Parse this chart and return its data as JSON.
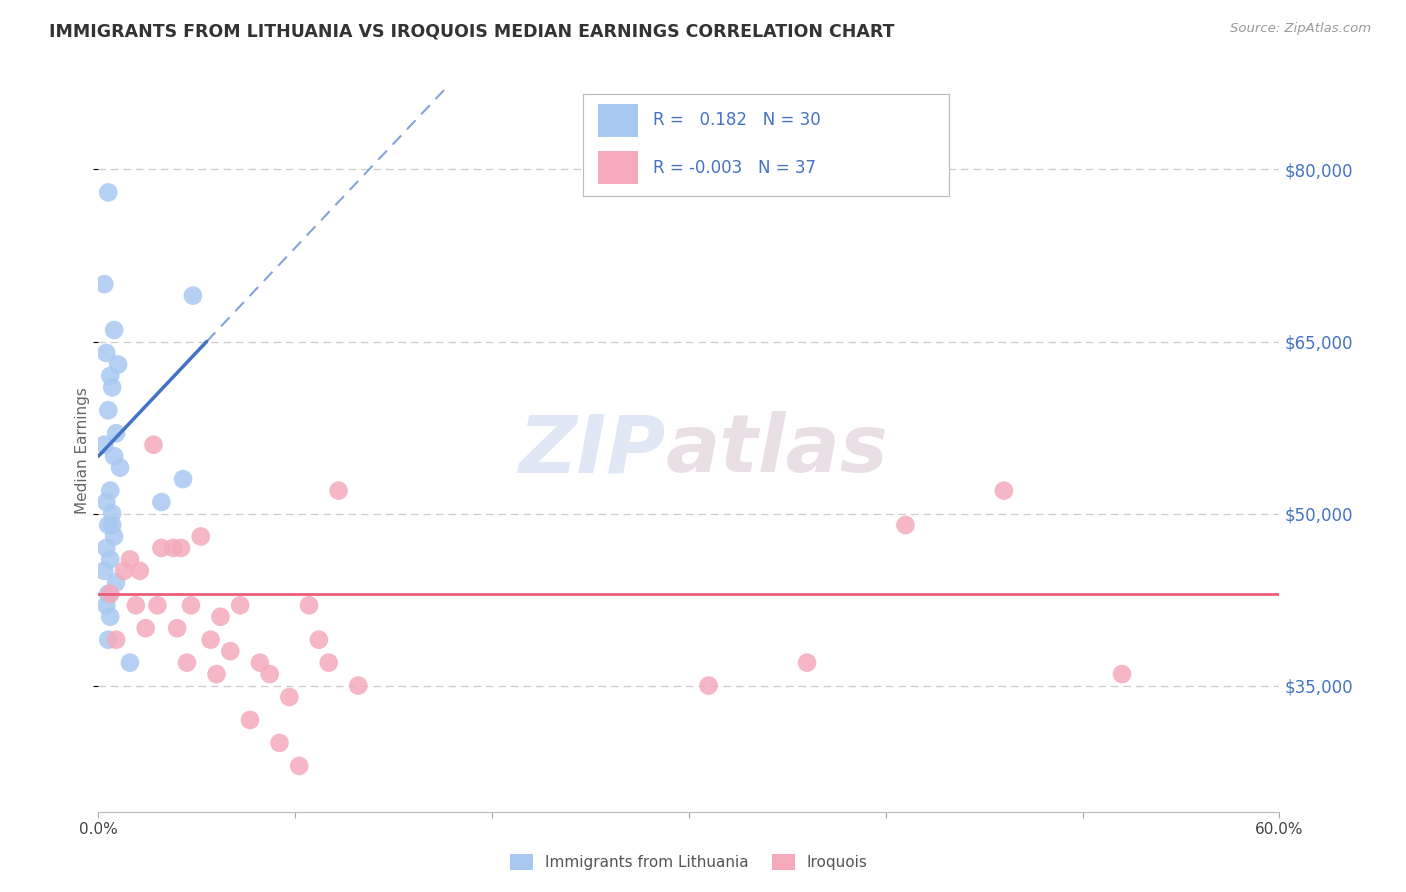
{
  "title": "IMMIGRANTS FROM LITHUANIA VS IROQUOIS MEDIAN EARNINGS CORRELATION CHART",
  "source": "Source: ZipAtlas.com",
  "ylabel": "Median Earnings",
  "xlim": [
    0.0,
    60.0
  ],
  "ylim": [
    24000,
    87000
  ],
  "y_ticks": [
    35000,
    50000,
    65000,
    80000
  ],
  "y_tick_labels": [
    "$35,000",
    "$50,000",
    "$65,000",
    "$80,000"
  ],
  "blue_R": 0.182,
  "blue_N": 30,
  "pink_R": -0.003,
  "pink_N": 37,
  "blue_color": "#a8c8f0",
  "pink_color": "#f4aabb",
  "blue_line_color": "#4472c4",
  "pink_line_color": "#e8607a",
  "grid_color": "#cccccc",
  "background_color": "#ffffff",
  "blue_scatter_x": [
    0.5,
    0.3,
    0.8,
    0.4,
    1.0,
    0.6,
    0.7,
    0.5,
    0.9,
    0.3,
    0.8,
    1.1,
    0.6,
    0.4,
    0.7,
    0.5,
    0.8,
    0.4,
    0.6,
    0.3,
    0.9,
    0.5,
    0.4,
    4.8,
    0.7,
    4.3,
    0.6,
    0.5,
    1.6,
    3.2
  ],
  "blue_scatter_y": [
    78000,
    70000,
    66000,
    64000,
    63000,
    62000,
    61000,
    59000,
    57000,
    56000,
    55000,
    54000,
    52000,
    51000,
    50000,
    49000,
    48000,
    47000,
    46000,
    45000,
    44000,
    43000,
    42000,
    69000,
    49000,
    53000,
    41000,
    39000,
    37000,
    51000
  ],
  "pink_scatter_x": [
    0.6,
    1.3,
    0.9,
    2.8,
    1.6,
    3.2,
    2.1,
    3.8,
    1.9,
    2.4,
    4.2,
    3.0,
    5.2,
    4.7,
    4.0,
    6.2,
    5.7,
    4.5,
    7.2,
    6.0,
    6.7,
    8.2,
    7.7,
    9.2,
    8.7,
    10.2,
    9.7,
    11.2,
    10.7,
    12.2,
    11.7,
    13.2,
    46.0,
    52.0,
    41.0,
    36.0,
    31.0
  ],
  "pink_scatter_y": [
    43000,
    45000,
    39000,
    56000,
    46000,
    47000,
    45000,
    47000,
    42000,
    40000,
    47000,
    42000,
    48000,
    42000,
    40000,
    41000,
    39000,
    37000,
    42000,
    36000,
    38000,
    37000,
    32000,
    30000,
    36000,
    28000,
    34000,
    39000,
    42000,
    52000,
    37000,
    35000,
    52000,
    36000,
    49000,
    37000,
    35000
  ],
  "pink_flat_y": 43000,
  "blue_line_x0": 0.0,
  "blue_line_y0": 55000,
  "blue_line_x1": 5.5,
  "blue_line_y1": 65000,
  "watermark_zip": "ZIP",
  "watermark_atlas": "atlas",
  "legend_label_blue": "Immigrants from Lithuania",
  "legend_label_pink": "Iroquois"
}
